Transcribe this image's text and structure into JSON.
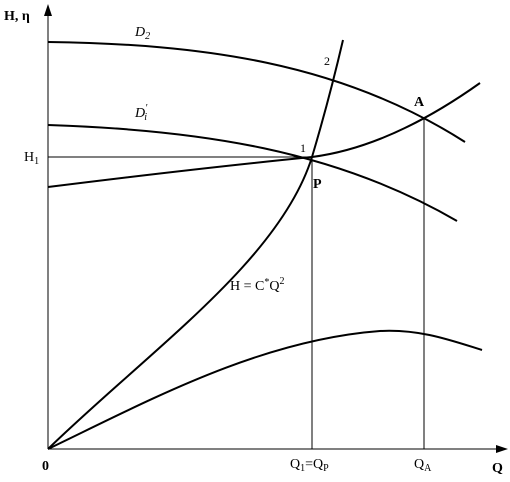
{
  "axes": {
    "y_label": "H, η",
    "x_label": "Q",
    "origin": "0"
  },
  "curves": {
    "d2": {
      "base": "D",
      "sub": "2"
    },
    "d1": {
      "base": "D",
      "sup": "'",
      "sub": "i"
    },
    "system": {
      "base": "H = C",
      "sup1": "*",
      "mid": "Q",
      "sup2": "2"
    }
  },
  "points": {
    "p2": "2",
    "p1": "1",
    "a": "A",
    "p": "P"
  },
  "marks": {
    "h1": {
      "base": "H",
      "sub": "1"
    },
    "q1": {
      "base": "Q",
      "sub1": "1",
      "mid": "=Q",
      "sub2": "P"
    },
    "qa": {
      "base": "Q",
      "sub": "A"
    }
  }
}
